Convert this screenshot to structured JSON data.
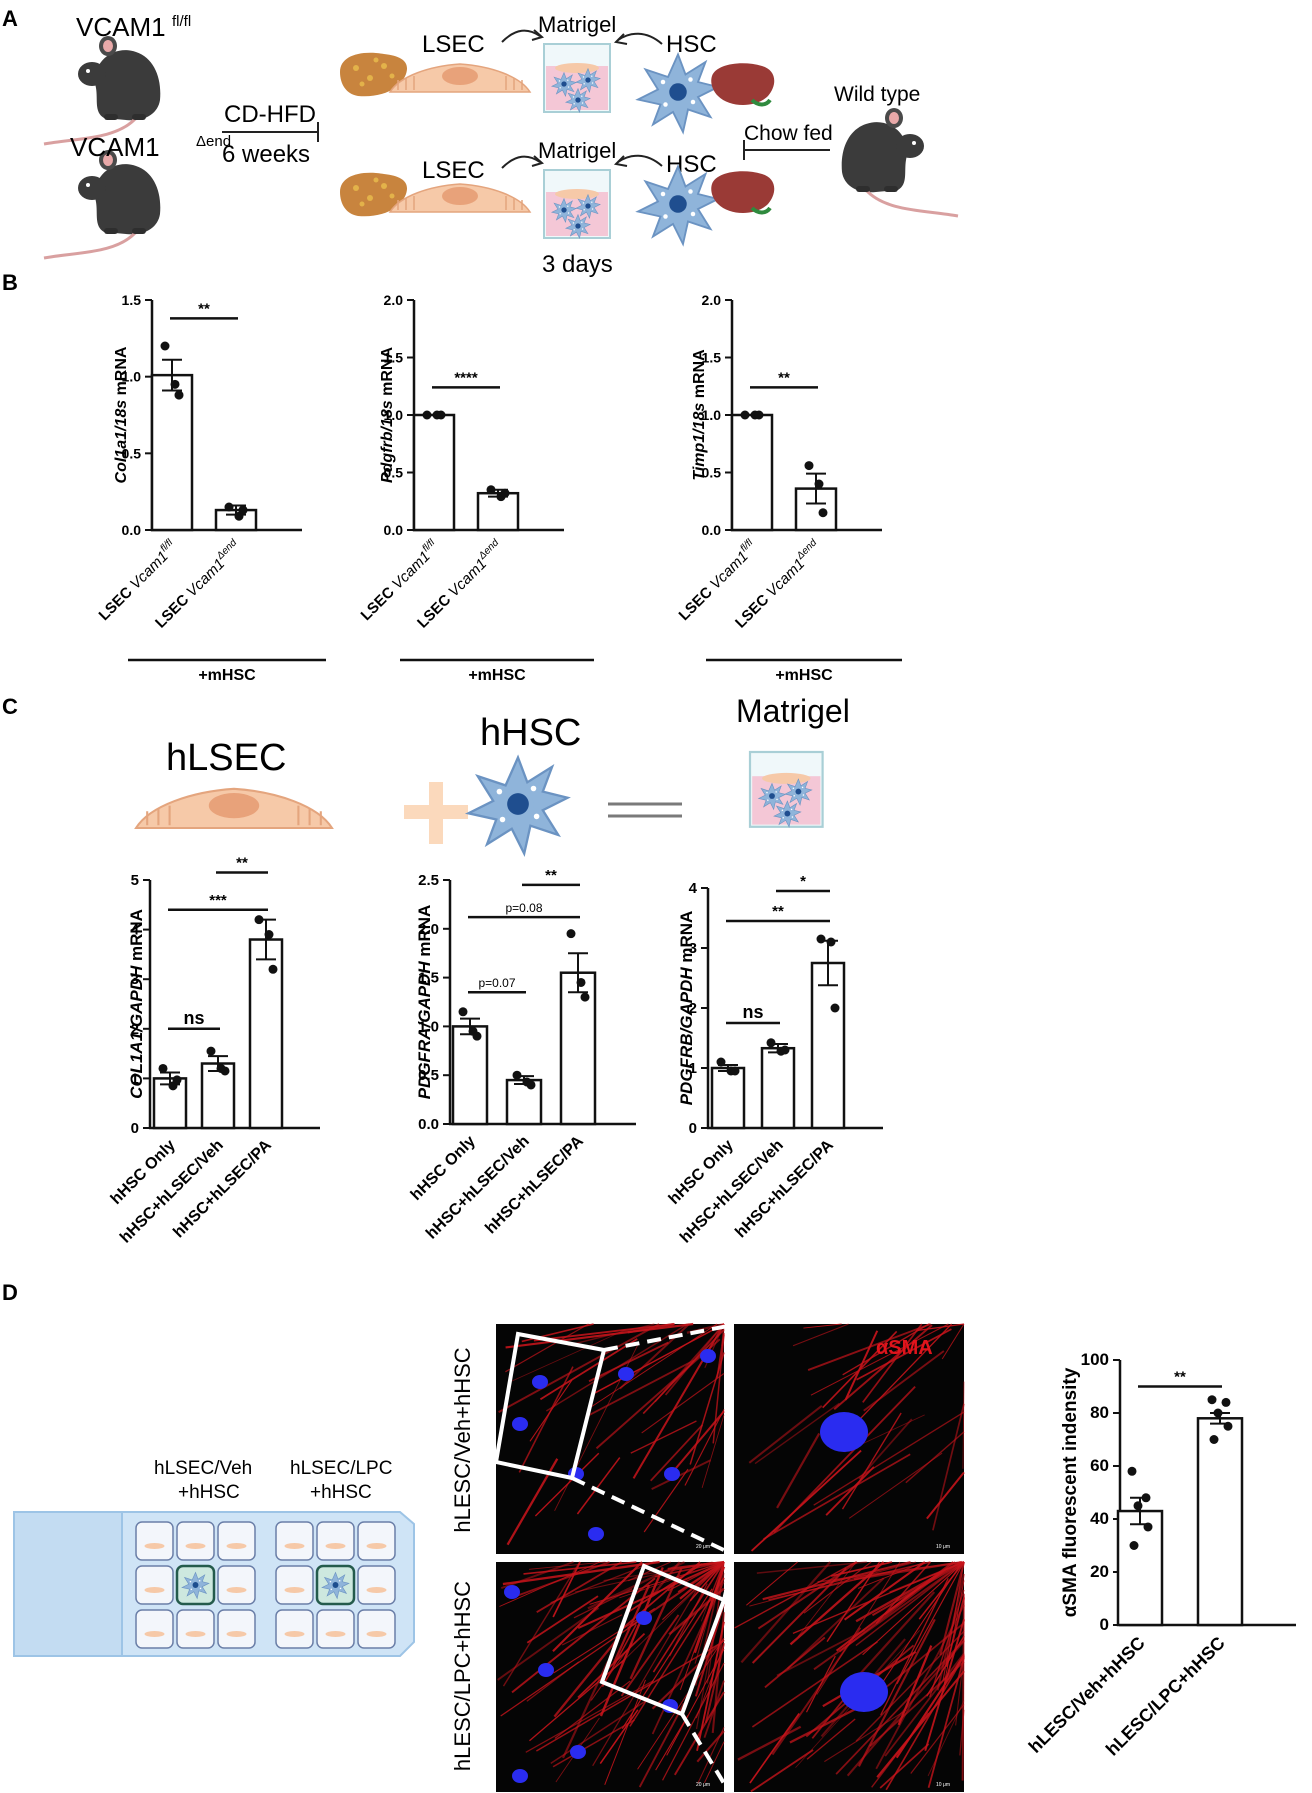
{
  "panel_labels": {
    "A": "A",
    "B": "B",
    "C": "C",
    "D": "D"
  },
  "panel_a": {
    "mouse_top": "VCAM1",
    "mouse_top_sup": "fl/fl",
    "mouse_bottom": "VCAM1",
    "mouse_bottom_sup": "Δend",
    "diet": "CD-HFD",
    "duration": "6 weeks",
    "lsec": "LSEC",
    "matrigel": "Matrigel",
    "hsc": "HSC",
    "chow": "Chow fed",
    "wild_type": "Wild type",
    "culture_time": "3 days"
  },
  "panel_c": {
    "hlsec": "hLSEC",
    "hhsc": "hHSC",
    "matrigel": "Matrigel"
  },
  "panel_d": {
    "group1_line1": "hLSEC/Veh",
    "group1_line2": "+hHSC",
    "group2_line1": "hLSEC/LPC",
    "group2_line2": "+hHSC",
    "row1_label": "hLESC/Veh+hHSC",
    "row2_label": "hLESC/LPC+hHSC",
    "stain": "αSMA",
    "scale_1": "20 μm",
    "scale_2": "10 μm"
  },
  "colors": {
    "stain_red": "#e0141c",
    "nuclei_blue": "#2230ff",
    "well_pink": "#f4c7d6",
    "cell_peach": "#f6c9a8",
    "hsc_blue": "#7aa6d4"
  },
  "chart_data": [
    {
      "id": "b1",
      "type": "bar",
      "ylabel_italic": "Col1a1/18s",
      "ylabel_rest": " mRNA",
      "categories": [
        "LSEC Vcam1fl/fl",
        "LSEC Vcam1Δend"
      ],
      "cat_main": [
        "LSEC ",
        "LSEC "
      ],
      "cat_ital": [
        "Vcam1",
        "Vcam1"
      ],
      "cat_sup": [
        "fl/fl",
        "Δend"
      ],
      "values": [
        1.01,
        0.13
      ],
      "errors": [
        0.1,
        0.03
      ],
      "points": [
        [
          1.2,
          0.95,
          0.88
        ],
        [
          0.15,
          0.09,
          0.13
        ]
      ],
      "ylim": [
        0,
        1.5
      ],
      "yticks": [
        "0.0",
        "0.5",
        "1.0",
        "1.5"
      ],
      "group_label": "+mHSC",
      "sig": [
        {
          "from": 0,
          "to": 1,
          "label": "**"
        }
      ]
    },
    {
      "id": "b2",
      "type": "bar",
      "ylabel_italic": "Pdgfrb/18s",
      "ylabel_rest": " mRNA",
      "categories": [
        "LSEC Vcam1fl/fl",
        "LSEC Vcam1Δend"
      ],
      "cat_main": [
        "LSEC ",
        "LSEC "
      ],
      "cat_ital": [
        "Vcam1",
        "Vcam1"
      ],
      "cat_sup": [
        "fl/fl",
        "Δend"
      ],
      "values": [
        1.0,
        0.32
      ],
      "errors": [
        0.0,
        0.03
      ],
      "points": [
        [
          1.0,
          1.0,
          1.0
        ],
        [
          0.35,
          0.29,
          0.32
        ]
      ],
      "ylim": [
        0,
        2.0
      ],
      "yticks": [
        "0.0",
        "0.5",
        "1.0",
        "1.5",
        "2.0"
      ],
      "group_label": "+mHSC",
      "sig": [
        {
          "from": 0,
          "to": 1,
          "label": "****"
        }
      ]
    },
    {
      "id": "b3",
      "type": "bar",
      "ylabel_italic": "Timp1/18s",
      "ylabel_rest": " mRNA",
      "categories": [
        "LSEC Vcam1fl/fl",
        "LSEC Vcam1Δend"
      ],
      "cat_main": [
        "LSEC ",
        "LSEC "
      ],
      "cat_ital": [
        "Vcam1",
        "Vcam1"
      ],
      "cat_sup": [
        "fl/fl",
        "Δend"
      ],
      "values": [
        1.0,
        0.36
      ],
      "errors": [
        0.0,
        0.13
      ],
      "points": [
        [
          1.0,
          1.0,
          1.0
        ],
        [
          0.56,
          0.4,
          0.15
        ]
      ],
      "ylim": [
        0,
        2.0
      ],
      "yticks": [
        "0.0",
        "0.5",
        "1.0",
        "1.5",
        "2.0"
      ],
      "group_label": "+mHSC",
      "sig": [
        {
          "from": 0,
          "to": 1,
          "label": "**"
        }
      ]
    },
    {
      "id": "c1",
      "type": "bar",
      "ylabel_italic": "COL1A1/GAPDH",
      "ylabel_rest": " mRNA",
      "categories": [
        "hHSC Only",
        "hHSC+hLSEC/Veh",
        "hHSC+hLSEC/PA"
      ],
      "values": [
        1.0,
        1.3,
        3.8
      ],
      "errors": [
        0.12,
        0.15,
        0.4
      ],
      "points": [
        [
          1.2,
          0.85,
          0.97
        ],
        [
          1.55,
          1.2,
          1.15
        ],
        [
          4.2,
          3.9,
          3.2
        ]
      ],
      "ylim": [
        0,
        5
      ],
      "yticks": [
        "0",
        "1",
        "2",
        "3",
        "4",
        "5"
      ],
      "sig": [
        {
          "from": 1,
          "to": 2,
          "label": "**",
          "y": 5.15
        },
        {
          "from": 0,
          "to": 2,
          "label": "***",
          "y": 4.4
        },
        {
          "from": 0,
          "to": 1,
          "label": "ns",
          "y": 2.0
        }
      ]
    },
    {
      "id": "c2",
      "type": "bar",
      "ylabel_italic": "PDGFRA/GAPDH",
      "ylabel_rest": " mRNA",
      "categories": [
        "hHSC Only",
        "hHSC+hLSEC/Veh",
        "hHSC+hLSEC/PA"
      ],
      "values": [
        1.0,
        0.45,
        1.55
      ],
      "errors": [
        0.08,
        0.04,
        0.2
      ],
      "points": [
        [
          1.15,
          0.95,
          0.9
        ],
        [
          0.5,
          0.43,
          0.4
        ],
        [
          1.95,
          1.45,
          1.3
        ]
      ],
      "ylim": [
        0,
        2.5
      ],
      "yticks": [
        "0.0",
        "0.5",
        "1.0",
        "1.5",
        "2.0",
        "2.5"
      ],
      "sig": [
        {
          "from": 1,
          "to": 2,
          "label": "**",
          "y": 2.45
        },
        {
          "from": 0,
          "to": 2,
          "label": "p=0.08",
          "y": 2.12
        },
        {
          "from": 0,
          "to": 1,
          "label": "p=0.07",
          "y": 1.35
        }
      ]
    },
    {
      "id": "c3",
      "type": "bar",
      "ylabel_italic": "PDGFRB/GAPDH",
      "ylabel_rest": " mRNA",
      "categories": [
        "hHSC Only",
        "hHSC+hLSEC/Veh",
        "hHSC+hLSEC/PA"
      ],
      "values": [
        1.0,
        1.33,
        2.75
      ],
      "errors": [
        0.05,
        0.07,
        0.37
      ],
      "points": [
        [
          1.1,
          0.95,
          0.95
        ],
        [
          1.42,
          1.28,
          1.3
        ],
        [
          3.15,
          3.1,
          2.0
        ]
      ],
      "ylim": [
        0,
        4
      ],
      "yticks": [
        "0",
        "1",
        "2",
        "3",
        "4"
      ],
      "sig": [
        {
          "from": 1,
          "to": 2,
          "label": "*",
          "y": 3.95
        },
        {
          "from": 0,
          "to": 2,
          "label": "**",
          "y": 3.45
        },
        {
          "from": 0,
          "to": 1,
          "label": "ns",
          "y": 1.75
        }
      ]
    },
    {
      "id": "d1",
      "type": "bar",
      "ylabel_italic": "",
      "ylabel_rest": "αSMA fluorescent indensity",
      "categories": [
        "hLESC/Veh+hHSC",
        "hLESC/LPC+hHSC"
      ],
      "values": [
        43,
        78
      ],
      "errors": [
        5,
        2
      ],
      "points": [
        [
          58,
          48,
          45,
          37,
          30
        ],
        [
          85,
          84,
          80,
          75,
          70
        ]
      ],
      "ylim": [
        0,
        100
      ],
      "yticks": [
        "0",
        "20",
        "40",
        "60",
        "80",
        "100"
      ],
      "sig": [
        {
          "from": 0,
          "to": 1,
          "label": "**",
          "y": 90
        }
      ]
    }
  ]
}
